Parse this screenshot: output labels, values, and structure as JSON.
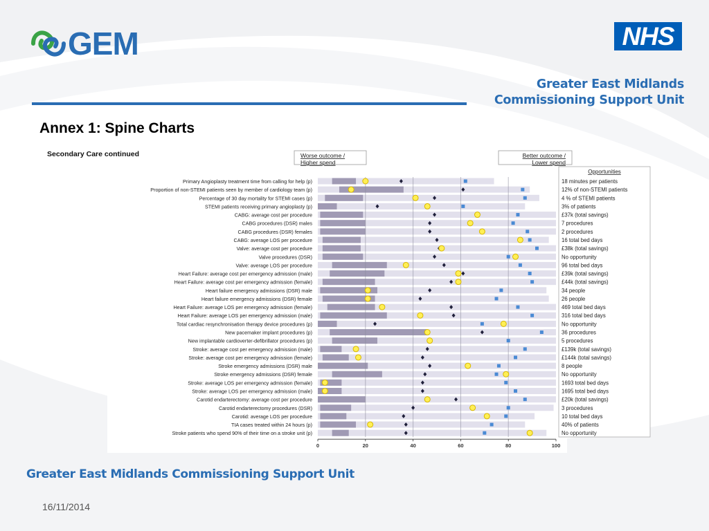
{
  "header": {
    "gem_logo_text": "GEM",
    "nhs_logo_text": "NHS",
    "org_name_line1": "Greater East Midlands",
    "org_name_line2": "Commissioning Support Unit",
    "page_title": "Annex 1: Spine Charts"
  },
  "footer": {
    "org_name": "Greater East Midlands Commissioning Support Unit",
    "date": "16/11/2014"
  },
  "colors": {
    "brand_blue": "#2a6db3",
    "nhs_blue": "#005eb8",
    "track": "#e2e0ec",
    "bar": "#a09ab4",
    "diamond": "#1f1f3a",
    "circle_fill": "#ffef55",
    "circle_stroke": "#d8b800",
    "square": "#4a8ad4"
  },
  "chart_data": {
    "type": "spine",
    "title": "Secondary Care continued",
    "legend_left": {
      "line1": "Worse outcome /",
      "line2": "Higher spend"
    },
    "legend_right": {
      "line1": "Better outcome /",
      "line2": "Lower spend"
    },
    "opportunities_header": "Opportunities",
    "xlim": [
      0,
      100
    ],
    "xticks": [
      0,
      20,
      40,
      60,
      80,
      100
    ],
    "rows": [
      {
        "label": "Primary Angioplasty treatment time from calling for help (p)",
        "bar": [
          6,
          16
        ],
        "range_end": 74,
        "diamond": 35,
        "circle": 20,
        "square": 62,
        "opportunity": "18 minutes per patients"
      },
      {
        "label": "Proportion of non-STEMI patients seen by member of cardiology team (p)",
        "bar": [
          9,
          36
        ],
        "range_end": 89,
        "diamond": 61,
        "circle": 14,
        "square": 86,
        "opportunity": "12% of non-STEMI patients"
      },
      {
        "label": "Percentage of 30 day mortality for STEMI cases (p)",
        "bar": [
          3,
          19
        ],
        "range_end": 93,
        "diamond": 49,
        "circle": 41,
        "square": 87,
        "opportunity": "4 % of STEMI patients"
      },
      {
        "label": "STEMI patients receiving primary angioplasty (p)",
        "bar": [
          0,
          8
        ],
        "range_end": 87,
        "diamond": 25,
        "circle": 46,
        "square": 61,
        "opportunity": "3% of patients"
      },
      {
        "label": "CABG: average cost per procedure",
        "bar": [
          1,
          19
        ],
        "range_end": 100,
        "diamond": 49,
        "circle": 67,
        "square": 84,
        "opportunity": "£37k (total savings)"
      },
      {
        "label": "CABG procedures (DSR) males",
        "bar": [
          1,
          20
        ],
        "range_end": 100,
        "diamond": 47,
        "circle": 64,
        "square": 82,
        "opportunity": "7 procedures"
      },
      {
        "label": "CABG procedures (DSR) females",
        "bar": [
          1,
          20
        ],
        "range_end": 100,
        "diamond": 47,
        "circle": 69,
        "square": 88,
        "opportunity": "2 procedures"
      },
      {
        "label": "CABG: average LOS per procedure",
        "bar": [
          2,
          18
        ],
        "range_end": 97,
        "diamond": 50,
        "circle": 85,
        "square": 89,
        "opportunity": "16 total bed days"
      },
      {
        "label": "Valve: average cost per procedure",
        "bar": [
          2,
          18
        ],
        "range_end": 100,
        "diamond": 51,
        "circle": 52,
        "square": 92,
        "opportunity": "£38k (total savings)"
      },
      {
        "label": "Valve procedures (DSR)",
        "bar": [
          2,
          19
        ],
        "range_end": 100,
        "diamond": 49,
        "circle": 83,
        "square": 80,
        "opportunity": "No opportunity"
      },
      {
        "label": "Valve: average LOS per procedure",
        "bar": [
          6,
          29
        ],
        "range_end": 100,
        "diamond": 53,
        "circle": 37,
        "square": 85,
        "opportunity": "96 total bed days"
      },
      {
        "label": "Heart Failure: average cost per emergency admission (male)",
        "bar": [
          5,
          28
        ],
        "range_end": 100,
        "diamond": 61,
        "circle": 59,
        "square": 89,
        "opportunity": "£39k (total savings)"
      },
      {
        "label": "Heart Failure: average cost per emergency admission (female)",
        "bar": [
          2,
          24
        ],
        "range_end": 100,
        "diamond": 56,
        "circle": 59,
        "square": 90,
        "opportunity": "£44k (total savings)"
      },
      {
        "label": "Heart failure emergency admissions (DSR) male",
        "bar": [
          1,
          25
        ],
        "range_end": 96,
        "diamond": 47,
        "circle": 21,
        "square": 77,
        "opportunity": "34 people"
      },
      {
        "label": "Heart failure emergency admissions (DSR) female",
        "bar": [
          2,
          24
        ],
        "range_end": 97,
        "diamond": 43,
        "circle": 21,
        "square": 75,
        "opportunity": "26 people"
      },
      {
        "label": "Heart Failure: average LOS per emergency admission (female)",
        "bar": [
          4,
          24
        ],
        "range_end": 100,
        "diamond": 56,
        "circle": 27,
        "square": 84,
        "opportunity": "469 total bed days"
      },
      {
        "label": "Heart Failure: average LOS per emergency admission (male)",
        "bar": [
          1,
          29
        ],
        "range_end": 100,
        "diamond": 57,
        "circle": 43,
        "square": 90,
        "opportunity": "316 total bed days"
      },
      {
        "label": "Total cardiac resynchronisation therapy device procedures (p)",
        "bar": [
          0,
          8
        ],
        "range_end": 100,
        "diamond": 24,
        "circle": 78,
        "square": 69,
        "opportunity": "No opportunity"
      },
      {
        "label": "New pacemaker implant procedures (p)",
        "bar": [
          5,
          46
        ],
        "range_end": 100,
        "diamond": 69,
        "circle": 46,
        "square": 94,
        "opportunity": "36 procedures"
      },
      {
        "label": "New implantable cardioverter-defibrillator procedures (p)",
        "bar": [
          6,
          25
        ],
        "range_end": 100,
        "diamond": 47,
        "circle": 47,
        "square": 80,
        "opportunity": "5 procedures"
      },
      {
        "label": "Stroke: average cost per emergency admission (male)",
        "bar": [
          1,
          10
        ],
        "range_end": 100,
        "diamond": 46,
        "circle": 16,
        "square": 87,
        "opportunity": "£139k (total savings)"
      },
      {
        "label": "Stroke: average cost per emergency admission (female)",
        "bar": [
          2,
          13
        ],
        "range_end": 100,
        "diamond": 44,
        "circle": 17,
        "square": 83,
        "opportunity": "£144k (total savings)"
      },
      {
        "label": "Stroke emergency admissions (DSR) male",
        "bar": [
          0,
          21
        ],
        "range_end": 100,
        "diamond": 47,
        "circle": 63,
        "square": 76,
        "opportunity": "8 people"
      },
      {
        "label": "Stroke emergency admissions (DSR) female",
        "bar": [
          6,
          27
        ],
        "range_end": 100,
        "diamond": 45,
        "circle": 79,
        "square": 75,
        "opportunity": "No opportunity"
      },
      {
        "label": "Stroke: average LOS per emergency admission (female)",
        "bar": [
          1,
          10
        ],
        "range_end": 100,
        "diamond": 44,
        "circle": 3,
        "square": 79,
        "opportunity": "1693 total bed days"
      },
      {
        "label": "Stroke: average LOS per emergency admission (male)",
        "bar": [
          0,
          10
        ],
        "range_end": 100,
        "diamond": 44,
        "circle": 3,
        "square": 83,
        "opportunity": "1695 total bed days"
      },
      {
        "label": "Carotid endarterectomy: average cost per procedure",
        "bar": [
          0,
          20
        ],
        "range_end": 100,
        "diamond": 58,
        "circle": 46,
        "square": 87,
        "opportunity": "£20k (total savings)"
      },
      {
        "label": "Carotid endarterectomy procedures (DSR)",
        "bar": [
          1,
          14
        ],
        "range_end": 99,
        "diamond": 40,
        "circle": 65,
        "square": 80,
        "opportunity": "3 procedures"
      },
      {
        "label": "Carotid: average LOS per procedure",
        "bar": [
          1,
          12
        ],
        "range_end": 91,
        "diamond": 36,
        "circle": 71,
        "square": 79,
        "opportunity": "10 total bed days"
      },
      {
        "label": "TIA cases treated within 24 hours (p)",
        "bar": [
          1,
          16
        ],
        "range_end": 87,
        "diamond": 37,
        "circle": 22,
        "square": 73,
        "opportunity": "40% of patients"
      },
      {
        "label": "Stroke patients who spend 90% of their time on a stroke unit (p)",
        "bar": [
          6,
          13
        ],
        "range_end": 96,
        "diamond": 37,
        "circle": 89,
        "square": 70,
        "opportunity": "No opportunity"
      }
    ]
  }
}
